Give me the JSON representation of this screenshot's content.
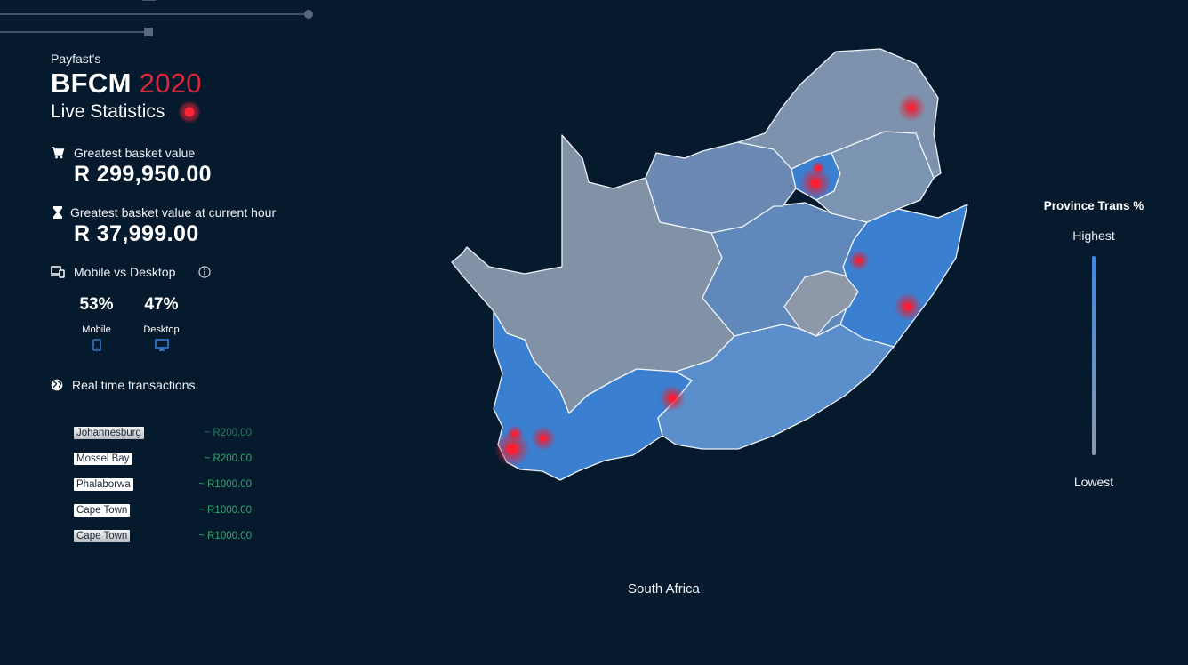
{
  "header": {
    "pre_title": "Payfast's",
    "title": "BFCM",
    "year": "2020",
    "subtitle": "Live Statistics"
  },
  "stats": {
    "greatest_basket": {
      "label": "Greatest basket value",
      "value": "R 299,950.00",
      "icon": "cart-icon"
    },
    "greatest_hour": {
      "label": "Greatest basket value at current hour",
      "value": "R 37,999.00",
      "icon": "hourglass-icon"
    },
    "device_split": {
      "label": "Mobile vs Desktop",
      "info_icon": "info-icon",
      "mobile": {
        "percent": "53%",
        "label": "Mobile",
        "icon": "phone-icon"
      },
      "desktop": {
        "percent": "47%",
        "label": "Desktop",
        "icon": "monitor-icon"
      }
    }
  },
  "transactions": {
    "label": "Real time transactions",
    "icon": "globe-icon",
    "rows": [
      {
        "city": "Johannesburg",
        "amount": "~ R200.00"
      },
      {
        "city": "Mossel Bay",
        "amount": "~ R200.00"
      },
      {
        "city": "Phalaborwa",
        "amount": "~ R1000.00"
      },
      {
        "city": "Cape Town",
        "amount": "~ R1000.00"
      },
      {
        "city": "Cape Town",
        "amount": "~ R1000.00"
      }
    ]
  },
  "map": {
    "country": "South Africa",
    "accent_color": "#3a7fd0",
    "low_color": "#8696a8",
    "hotspot_color": "#e0243a"
  },
  "legend": {
    "title": "Province Trans %",
    "high": "Highest",
    "low": "Lowest"
  }
}
